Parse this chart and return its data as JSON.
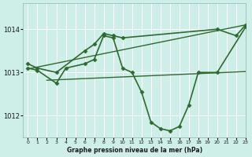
{
  "background_color": "#ceeee8",
  "grid_color": "#ffffff",
  "line_color": "#2d6a2d",
  "title": "Graphe pression niveau de la mer (hPa)",
  "xlim": [
    -0.5,
    23
  ],
  "ylim": [
    1011.5,
    1014.6
  ],
  "yticks": [
    1012,
    1013,
    1014
  ],
  "xticks": [
    0,
    1,
    2,
    3,
    4,
    5,
    6,
    7,
    8,
    9,
    10,
    11,
    12,
    13,
    14,
    15,
    16,
    17,
    18,
    19,
    20,
    21,
    22,
    23
  ],
  "series": [
    {
      "x": [
        0,
        1,
        3,
        6,
        7,
        8,
        9,
        10,
        20,
        22,
        23
      ],
      "y": [
        1013.2,
        1013.1,
        1013.0,
        1013.5,
        1013.65,
        1013.9,
        1013.85,
        1013.8,
        1014.0,
        1013.85,
        1014.1
      ],
      "marker": "D",
      "markersize": 2.5,
      "linewidth": 1.2
    },
    {
      "x": [
        0,
        1,
        3,
        4,
        6,
        7,
        8,
        9,
        10,
        11,
        12,
        13,
        14,
        15,
        16,
        17,
        18,
        20,
        23
      ],
      "y": [
        1013.1,
        1013.05,
        1012.75,
        1013.1,
        1013.2,
        1013.3,
        1013.85,
        1013.8,
        1013.1,
        1013.0,
        1012.55,
        1011.85,
        1011.7,
        1011.65,
        1011.75,
        1012.25,
        1013.0,
        1013.0,
        1014.05
      ],
      "marker": "D",
      "markersize": 2.5,
      "linewidth": 1.2
    },
    {
      "x": [
        2,
        23
      ],
      "y": [
        1012.82,
        1013.02
      ],
      "marker": null,
      "markersize": 0,
      "linewidth": 1.0
    },
    {
      "x": [
        0,
        23
      ],
      "y": [
        1013.08,
        1014.1
      ],
      "marker": null,
      "markersize": 0,
      "linewidth": 1.0
    }
  ]
}
